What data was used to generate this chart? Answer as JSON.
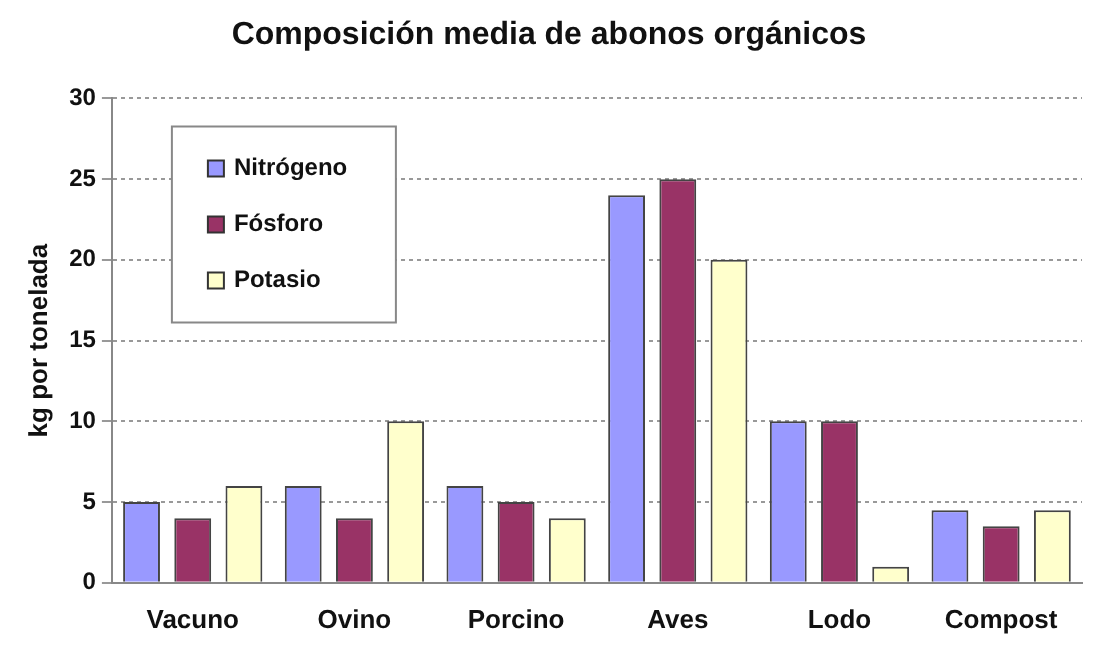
{
  "chart_data": {
    "type": "bar",
    "title": "Composición media de abonos orgánicos",
    "ylabel": "kg por tonelada",
    "categories": [
      "Vacuno",
      "Ovino",
      "Porcino",
      "Aves",
      "Lodo",
      "Compost"
    ],
    "series": [
      {
        "name": "Nitrógeno",
        "color": "#9999ff",
        "values": [
          5,
          6,
          6,
          24,
          10,
          4.5
        ]
      },
      {
        "name": "Fósforo",
        "color": "#993366",
        "values": [
          4,
          4,
          5,
          25,
          10,
          3.5
        ]
      },
      {
        "name": "Potasio",
        "color": "#ffffcc",
        "values": [
          6,
          10,
          4,
          20,
          1,
          4.5
        ]
      }
    ],
    "ylim": [
      0,
      30
    ],
    "yticks": [
      0,
      5,
      10,
      15,
      20,
      25,
      30
    ],
    "grid": "y",
    "legend": "top left"
  }
}
